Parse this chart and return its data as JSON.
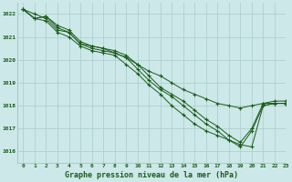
{
  "title": "Graphe pression niveau de la mer (hPa)",
  "bg_color": "#cce8e8",
  "plot_bg_color": "#cce8e8",
  "grid_color": "#aacccc",
  "line_color": "#1a5c1a",
  "xlim": [
    -0.5,
    23
  ],
  "ylim": [
    1015.5,
    1022.5
  ],
  "yticks": [
    1016,
    1017,
    1018,
    1019,
    1020,
    1021,
    1022
  ],
  "xticks": [
    0,
    1,
    2,
    3,
    4,
    5,
    6,
    7,
    8,
    9,
    10,
    11,
    12,
    13,
    14,
    15,
    16,
    17,
    18,
    19,
    20,
    21,
    22,
    23
  ],
  "series": [
    [
      1022.2,
      1022.0,
      1021.8,
      1021.3,
      1021.2,
      1020.7,
      1020.5,
      1020.4,
      1020.3,
      1020.1,
      1019.8,
      1019.5,
      1019.3,
      1019.0,
      1018.7,
      1018.5,
      1018.3,
      1018.1,
      1018.0,
      1017.9,
      1018.0,
      1018.1,
      1018.1,
      1018.1
    ],
    [
      1022.2,
      1021.8,
      1021.7,
      1021.2,
      1021.0,
      1020.6,
      1020.4,
      1020.3,
      1020.2,
      1019.8,
      1019.4,
      1018.9,
      1018.5,
      1018.0,
      1017.6,
      1017.2,
      1016.9,
      1016.7,
      1016.5,
      1016.3,
      1016.2,
      1018.0,
      1018.1,
      1018.1
    ],
    [
      1022.2,
      1021.8,
      1021.9,
      1021.4,
      1021.2,
      1020.7,
      1020.6,
      1020.5,
      1020.3,
      1020.1,
      1019.6,
      1019.1,
      1018.7,
      1018.4,
      1018.0,
      1017.6,
      1017.2,
      1016.9,
      1016.5,
      1016.2,
      1016.9,
      1018.0,
      1018.1,
      1018.1
    ],
    [
      1022.2,
      1021.8,
      1021.9,
      1021.5,
      1021.3,
      1020.8,
      1020.6,
      1020.5,
      1020.4,
      1020.2,
      1019.8,
      1019.3,
      1018.8,
      1018.5,
      1018.2,
      1017.8,
      1017.4,
      1017.1,
      1016.7,
      1016.4,
      1017.0,
      1018.1,
      1018.2,
      1018.2
    ]
  ]
}
